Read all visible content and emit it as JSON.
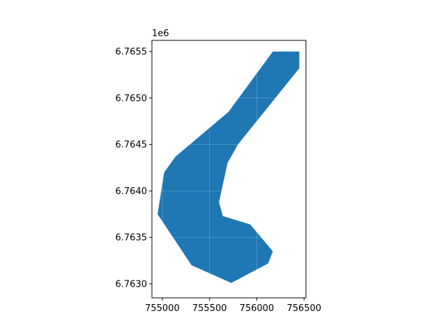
{
  "chart_data": {
    "type": "area",
    "title": "",
    "xlabel": "",
    "ylabel": "",
    "y_offset_label": "1e6",
    "xlim": [
      754890,
      756520
    ],
    "ylim": [
      6.76285,
      6.76562
    ],
    "x_ticks": [
      755000,
      755500,
      756000,
      756500
    ],
    "x_tick_labels": [
      "755000",
      "755500",
      "756000",
      "756500"
    ],
    "y_ticks": [
      6.763,
      6.7635,
      6.764,
      6.7645,
      6.765,
      6.7655
    ],
    "y_tick_labels": [
      "6.7630",
      "6.7635",
      "6.7640",
      "6.7645",
      "6.7650",
      "6.7655"
    ],
    "grid": true,
    "fill_color": "#1f77b4",
    "polygon": [
      [
        756170,
        6.7655
      ],
      [
        756450,
        6.7655
      ],
      [
        756450,
        6.76532
      ],
      [
        755800,
        6.7645
      ],
      [
        755690,
        6.7643
      ],
      [
        755600,
        6.76388
      ],
      [
        755640,
        6.76373
      ],
      [
        755930,
        6.76364
      ],
      [
        756170,
        6.76335
      ],
      [
        756120,
        6.76322
      ],
      [
        755730,
        6.76301
      ],
      [
        755310,
        6.7632
      ],
      [
        754950,
        6.76375
      ],
      [
        755020,
        6.7642
      ],
      [
        755140,
        6.76437
      ],
      [
        755700,
        6.76485
      ],
      [
        756170,
        6.7655
      ]
    ]
  }
}
